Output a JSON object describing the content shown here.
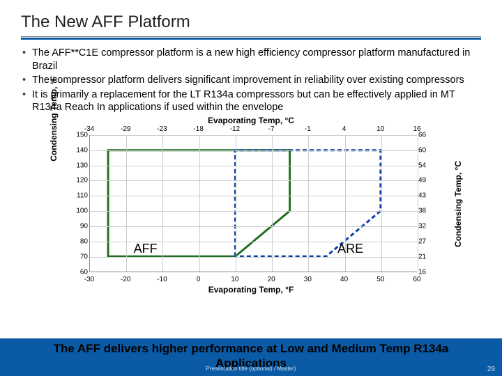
{
  "title": "The New AFF Platform",
  "bullets": [
    "The AFF**C1E compressor platform is a new high efficiency compressor platform manufactured in Brazil",
    "The compressor platform delivers significant improvement in reliability over existing compressors",
    "It is primarily a replacement for the LT R134a compressors but can be effectively applied in MT R134a Reach In applications if used within the envelope"
  ],
  "chart": {
    "title_top": "Evaporating Temp, °C",
    "title_bottom": "Evaporating Temp, °F",
    "y_left_label": "Condensing Temp, °F",
    "y_right_label": "Condensing Temp, °C",
    "x_bottom": {
      "min": -30,
      "max": 60,
      "step": 10,
      "ticks": [
        -30,
        -20,
        -10,
        0,
        10,
        20,
        30,
        40,
        50,
        60
      ]
    },
    "y_left": {
      "min": 60,
      "max": 150,
      "step": 10,
      "ticks": [
        60,
        70,
        80,
        90,
        100,
        110,
        120,
        130,
        140,
        150
      ]
    },
    "x_top_ticks": [
      -34,
      -29,
      -23,
      -18,
      -12,
      -7,
      -1,
      4,
      10,
      16
    ],
    "y_right_ticks": [
      16,
      21,
      27,
      32,
      38,
      43,
      49,
      54,
      60,
      66
    ],
    "grid_color": "#cccccc",
    "aff": {
      "label": "AFF",
      "stroke": "#1f6f1f",
      "fill": "none",
      "stroke_width": 3,
      "dash": "none",
      "points_F": [
        [
          -25,
          70
        ],
        [
          -25,
          140
        ],
        [
          25,
          140
        ],
        [
          25,
          100
        ],
        [
          10,
          70
        ]
      ]
    },
    "are": {
      "label": "ARE",
      "stroke": "#0a3ea5",
      "fill": "none",
      "stroke_width": 3,
      "dash": "6 4",
      "points_F": [
        [
          10,
          70
        ],
        [
          10,
          140
        ],
        [
          50,
          140
        ],
        [
          50,
          100
        ],
        [
          35,
          70
        ]
      ]
    },
    "label_positions": {
      "aff": {
        "xF": -18,
        "yF": 80
      },
      "are": {
        "xF": 38,
        "yF": 80
      }
    }
  },
  "bottom_text_lines": [
    "The AFF delivers higher performance at Low and Medium Temp R134a",
    "Applications"
  ],
  "footer_meta": "Presentation title (optional) / Master)",
  "page_number": "29",
  "colors": {
    "accent": "#0a5aa5",
    "band": "#0a5aa5",
    "rule": "#888888"
  }
}
